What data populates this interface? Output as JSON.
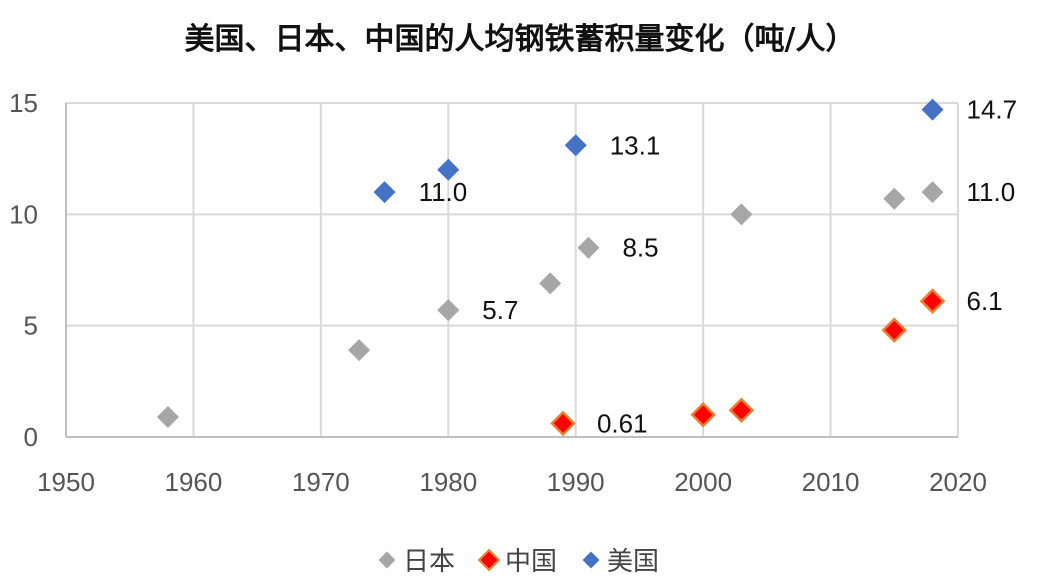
{
  "chart_data": {
    "type": "scatter",
    "title": "美国、日本、中国的人均钢铁蓄积量变化（吨/人）",
    "xlim": [
      1950,
      2020
    ],
    "ylim": [
      0,
      15
    ],
    "x_ticks": [
      "1950",
      "1960",
      "1970",
      "1980",
      "1990",
      "2000",
      "2010",
      "2020"
    ],
    "y_ticks": [
      "0",
      "5",
      "10",
      "15"
    ],
    "grid": true,
    "legend_position": "bottom",
    "series": [
      {
        "name": "日本",
        "color": "#a6a6a6",
        "points": [
          {
            "x": 1958,
            "y": 0.9
          },
          {
            "x": 1973,
            "y": 3.9
          },
          {
            "x": 1980,
            "y": 5.7,
            "label": "5.7"
          },
          {
            "x": 1988,
            "y": 6.9
          },
          {
            "x": 1991,
            "y": 8.5,
            "label": "8.5"
          },
          {
            "x": 2003,
            "y": 10.0
          },
          {
            "x": 2015,
            "y": 10.7
          },
          {
            "x": 2018,
            "y": 11.0,
            "label": "11.0"
          }
        ]
      },
      {
        "name": "中国",
        "color": "#ff0000",
        "outline": "#ed7d31",
        "points": [
          {
            "x": 1989,
            "y": 0.61,
            "label": "0.61"
          },
          {
            "x": 2000,
            "y": 1.0
          },
          {
            "x": 2003,
            "y": 1.2
          },
          {
            "x": 2015,
            "y": 4.8
          },
          {
            "x": 2018,
            "y": 6.1,
            "label": "6.1"
          }
        ]
      },
      {
        "name": "美国",
        "color": "#4472c4",
        "points": [
          {
            "x": 1975,
            "y": 11.0,
            "label": "11.0"
          },
          {
            "x": 1980,
            "y": 12.0
          },
          {
            "x": 1990,
            "y": 13.1,
            "label": "13.1"
          },
          {
            "x": 2018,
            "y": 14.7,
            "label": "14.7"
          }
        ]
      }
    ]
  }
}
